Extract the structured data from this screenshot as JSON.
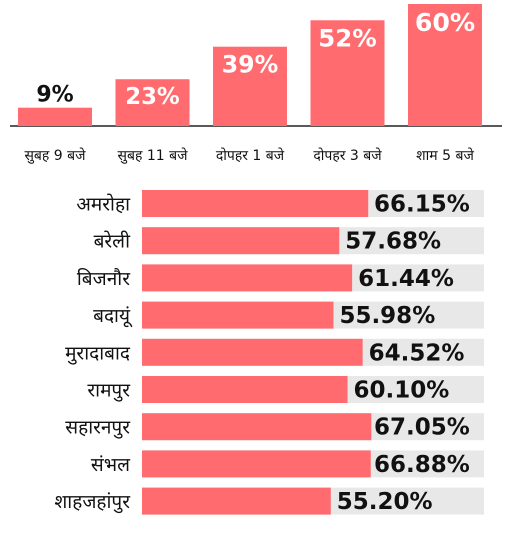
{
  "colors": {
    "bar": "#ff6b6e",
    "track": "#e8e8e8",
    "text": "#111111",
    "axis": "#222222"
  },
  "chart_data": [
    {
      "type": "bar",
      "categories": [
        "सुबह 9 बजे",
        "सुबह 11 बजे",
        "दोपहर 1 बजे",
        "दोपहर 3 बजे",
        "शाम 5 बजे"
      ],
      "values": [
        9,
        23,
        39,
        52,
        60
      ],
      "value_labels": [
        "9%",
        "23%",
        "39%",
        "52%",
        "60%"
      ],
      "title": "",
      "xlabel": "",
      "ylabel": "",
      "ylim": [
        0,
        60
      ]
    },
    {
      "type": "bar",
      "orientation": "horizontal",
      "categories": [
        "अमरोहा",
        "बरेली",
        "बिजनौर",
        "बदायूं",
        "मुरादाबाद",
        "रामपुर",
        "सहारनपुर",
        "संभल",
        "शाहजहांपुर"
      ],
      "values": [
        66.15,
        57.68,
        61.44,
        55.98,
        64.52,
        60.1,
        67.05,
        66.88,
        55.2
      ],
      "value_labels": [
        "66.15%",
        "57.68%",
        "61.44%",
        "55.98%",
        "64.52%",
        "60.10%",
        "67.05%",
        "66.88%",
        "55.20%"
      ],
      "title": "",
      "xlabel": "",
      "ylabel": "",
      "xlim": [
        0,
        100
      ]
    }
  ]
}
